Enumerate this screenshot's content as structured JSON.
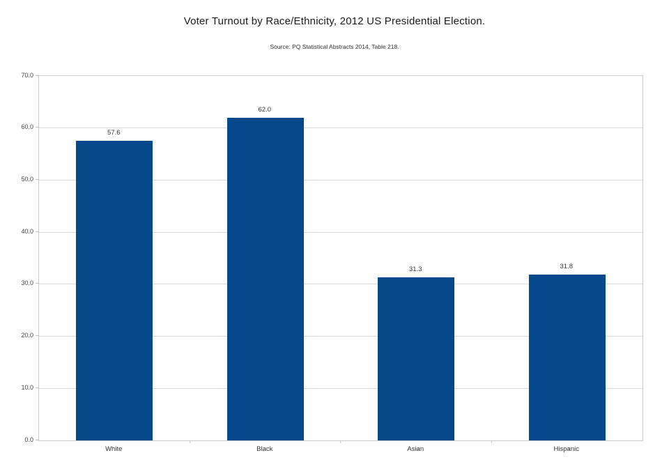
{
  "chart_data": {
    "type": "bar",
    "title": "Voter Turnout by Race/Ethnicity, 2012 US Presidential Election.",
    "subtitle": "Source: PQ Statistical Abstracts 2014, Table 218.",
    "categories": [
      "White",
      "Black",
      "Asian",
      "Hispanic"
    ],
    "values": [
      57.6,
      62.0,
      31.3,
      31.8
    ],
    "value_labels": [
      "57.6",
      "62.0",
      "31.3",
      "31.8"
    ],
    "xlabel": "",
    "ylabel": "",
    "ylim": [
      0,
      70
    ],
    "ytick_step": 10,
    "ytick_labels": [
      "0.0",
      "10.0",
      "20.0",
      "30.0",
      "40.0",
      "50.0",
      "60.0",
      "70.0"
    ],
    "grid": true,
    "legend": "none",
    "colors": {
      "bar": "#05498a",
      "gridline": "#d9d9d9",
      "axis": "#c9c9c9",
      "text": "#333333"
    }
  }
}
